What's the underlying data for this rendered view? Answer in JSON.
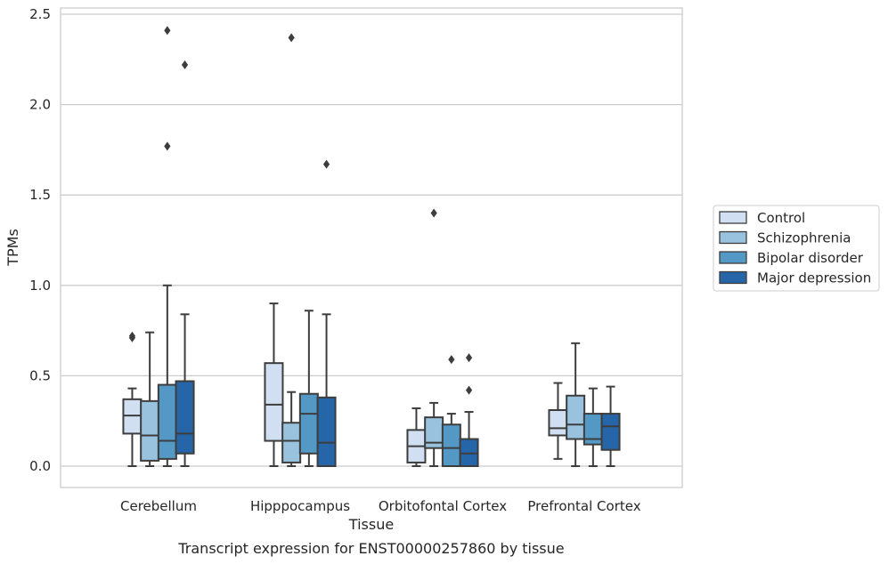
{
  "chart_data": {
    "type": "box",
    "caption": "Transcript expression for ENST00000257860 by tissue",
    "xlabel": "Tissue",
    "ylabel": "TPMs",
    "ylim": [
      -0.12,
      2.54
    ],
    "yticks": [
      0.0,
      0.5,
      1.0,
      1.5,
      2.0,
      2.5
    ],
    "ytick_labels": [
      "0.0",
      "0.5",
      "1.0",
      "1.5",
      "2.0",
      "2.5"
    ],
    "grid": "horizontal",
    "legend_position": "right",
    "categories": [
      "Cerebellum",
      "Hipppocampus",
      "Orbitofontal Cortex",
      "Prefrontal Cortex"
    ],
    "series": [
      {
        "name": "Control",
        "color": "#d0e0f2",
        "boxes": [
          {
            "min": 0.0,
            "q1": 0.18,
            "median": 0.28,
            "q3": 0.37,
            "max": 0.43,
            "outliers": [
              0.71,
              0.72
            ]
          },
          {
            "min": 0.0,
            "q1": 0.14,
            "median": 0.34,
            "q3": 0.57,
            "max": 0.9,
            "outliers": []
          },
          {
            "min": 0.0,
            "q1": 0.02,
            "median": 0.11,
            "q3": 0.2,
            "max": 0.32,
            "outliers": []
          },
          {
            "min": 0.04,
            "q1": 0.17,
            "median": 0.21,
            "q3": 0.31,
            "max": 0.46,
            "outliers": []
          }
        ]
      },
      {
        "name": "Schizophrenia",
        "color": "#98c2de",
        "boxes": [
          {
            "min": 0.0,
            "q1": 0.03,
            "median": 0.17,
            "q3": 0.36,
            "max": 0.74,
            "outliers": []
          },
          {
            "min": 0.0,
            "q1": 0.02,
            "median": 0.14,
            "q3": 0.24,
            "max": 0.41,
            "outliers": [
              2.37
            ]
          },
          {
            "min": 0.0,
            "q1": 0.1,
            "median": 0.13,
            "q3": 0.27,
            "max": 0.35,
            "outliers": [
              1.4
            ]
          },
          {
            "min": 0.0,
            "q1": 0.15,
            "median": 0.23,
            "q3": 0.39,
            "max": 0.68,
            "outliers": []
          }
        ]
      },
      {
        "name": "Bipolar disorder",
        "color": "#5499c6",
        "boxes": [
          {
            "min": 0.0,
            "q1": 0.04,
            "median": 0.14,
            "q3": 0.45,
            "max": 1.0,
            "outliers": [
              2.41,
              1.77
            ]
          },
          {
            "min": 0.0,
            "q1": 0.07,
            "median": 0.29,
            "q3": 0.4,
            "max": 0.86,
            "outliers": []
          },
          {
            "min": 0.0,
            "q1": 0.0,
            "median": 0.1,
            "q3": 0.23,
            "max": 0.29,
            "outliers": [
              0.59
            ]
          },
          {
            "min": 0.0,
            "q1": 0.12,
            "median": 0.15,
            "q3": 0.29,
            "max": 0.43,
            "outliers": []
          }
        ]
      },
      {
        "name": "Major depression",
        "color": "#2666a8",
        "boxes": [
          {
            "min": 0.0,
            "q1": 0.07,
            "median": 0.18,
            "q3": 0.47,
            "max": 0.84,
            "outliers": [
              2.22
            ]
          },
          {
            "min": 0.0,
            "q1": 0.0,
            "median": 0.13,
            "q3": 0.38,
            "max": 0.84,
            "outliers": [
              1.67
            ]
          },
          {
            "min": 0.0,
            "q1": 0.0,
            "median": 0.07,
            "q3": 0.15,
            "max": 0.3,
            "outliers": [
              0.6,
              0.42
            ]
          },
          {
            "min": 0.0,
            "q1": 0.09,
            "median": 0.22,
            "q3": 0.29,
            "max": 0.44,
            "outliers": []
          }
        ]
      }
    ]
  }
}
